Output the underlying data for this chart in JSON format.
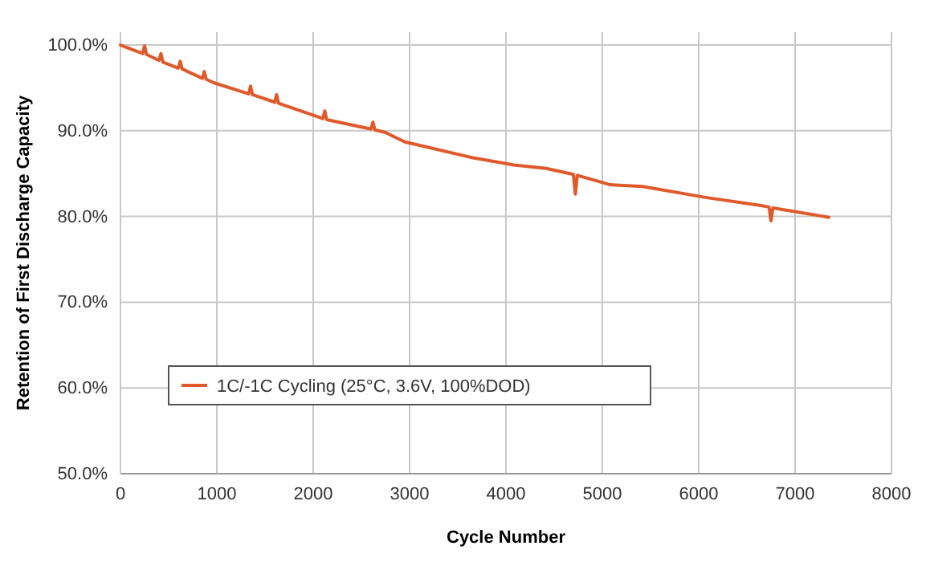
{
  "chart_data": {
    "type": "line",
    "xlabel": "Cycle Number",
    "ylabel": "Retention of First Discharge Capacity",
    "xlim": [
      0,
      8000
    ],
    "xticks": [
      0,
      1000,
      2000,
      3000,
      4000,
      5000,
      6000,
      7000,
      8000
    ],
    "ylim": [
      50,
      101.5
    ],
    "yticks": [
      {
        "value": 50,
        "label": "50.0%"
      },
      {
        "value": 60,
        "label": "60.0%"
      },
      {
        "value": 70,
        "label": "70.0%"
      },
      {
        "value": 80,
        "label": "80.0%"
      },
      {
        "value": 90,
        "label": "90.0%"
      },
      {
        "value": 100,
        "label": "100.0%"
      }
    ],
    "grid": true,
    "legend": "bottom left",
    "marker": "none",
    "line_style": "solid",
    "series": [
      {
        "name": "1C/-1C Cycling (25°C, 3.6V, 100%DOD)",
        "color": "#e0592a",
        "x": [
          0,
          230,
          250,
          270,
          400,
          420,
          440,
          600,
          620,
          640,
          850,
          870,
          890,
          967,
          1330,
          1350,
          1370,
          1583,
          1600,
          1620,
          1640,
          2083,
          2100,
          2120,
          2140,
          2600,
          2620,
          2640,
          2750,
          2950,
          3633,
          4083,
          4417,
          4700,
          4720,
          4740,
          5083,
          5417,
          6083,
          6633,
          6730,
          6750,
          6770,
          7300,
          7350
        ],
        "values": [
          100,
          99.0,
          99.9,
          98.9,
          98.2,
          99.0,
          98.0,
          97.3,
          98.1,
          97.2,
          96.1,
          96.9,
          96.0,
          95.6,
          94.3,
          95.2,
          94.2,
          93.4,
          93.3,
          94.2,
          93.2,
          91.5,
          91.4,
          92.3,
          91.3,
          90.2,
          91.0,
          90.1,
          89.8,
          88.7,
          86.9,
          86.0,
          85.6,
          84.9,
          82.6,
          84.8,
          83.7,
          83.5,
          82.2,
          81.3,
          81.1,
          79.5,
          81.0,
          80.0,
          79.9
        ]
      }
    ]
  }
}
